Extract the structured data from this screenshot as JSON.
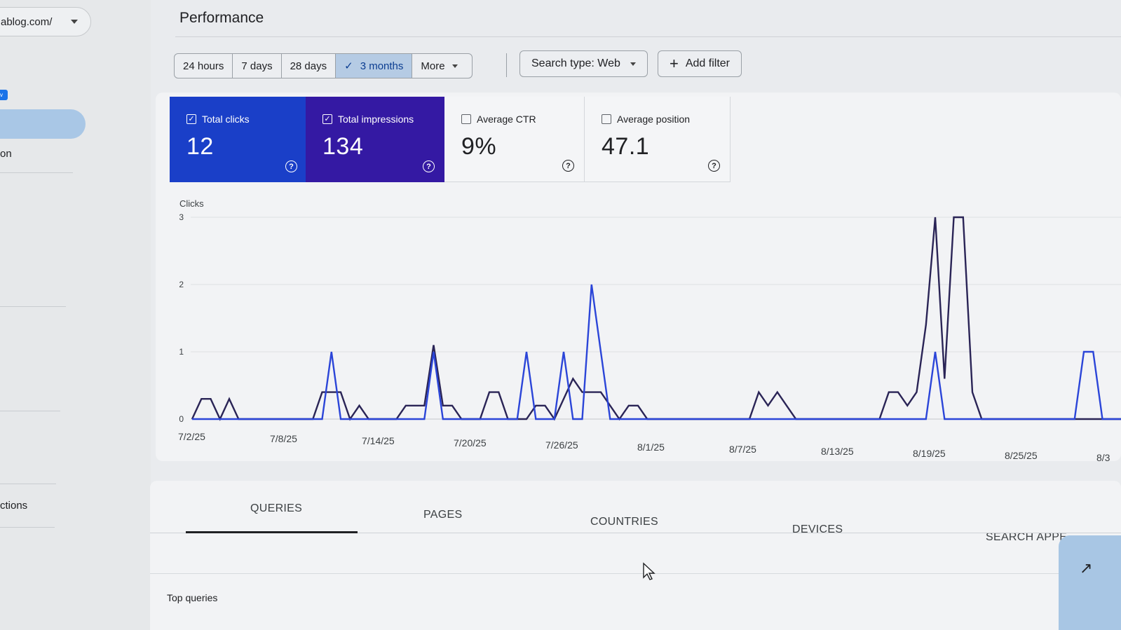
{
  "sidebar": {
    "property": "ablog.com/",
    "badge": "v",
    "items": [
      {
        "label": ""
      },
      {
        "label": "on"
      },
      {
        "label": "ctions"
      }
    ]
  },
  "header": {
    "title": "Performance"
  },
  "filters": {
    "ranges": [
      {
        "label": "24 hours",
        "selected": false
      },
      {
        "label": "7 days",
        "selected": false
      },
      {
        "label": "28 days",
        "selected": false
      },
      {
        "label": "3 months",
        "selected": true
      },
      {
        "label": "More",
        "selected": false
      }
    ],
    "search_type": "Search type: Web",
    "add_filter": "Add filter"
  },
  "metrics": [
    {
      "label": "Total clicks",
      "value": "12",
      "checked": true,
      "color": "#1a3fc8"
    },
    {
      "label": "Total impressions",
      "value": "134",
      "checked": true,
      "color": "#3419a3"
    },
    {
      "label": "Average CTR",
      "value": "9%",
      "checked": false
    },
    {
      "label": "Average position",
      "value": "47.1",
      "checked": false
    }
  ],
  "chart_data": {
    "type": "line",
    "ylabel": "Clicks",
    "ylim": [
      0,
      3
    ],
    "yticks": [
      "0",
      "1",
      "2",
      "3"
    ],
    "x_tick_labels": [
      "7/2/25",
      "7/8/25",
      "7/14/25",
      "7/20/25",
      "7/26/25",
      "8/1/25",
      "8/7/25",
      "8/13/25",
      "8/19/25",
      "8/25/25",
      "8/3"
    ],
    "series": [
      {
        "name": "Total clicks",
        "color": "#2b45d8",
        "values": [
          0,
          0,
          0,
          0,
          0,
          0,
          0,
          0,
          0,
          0,
          0,
          0,
          0,
          0,
          0,
          1,
          0,
          0,
          0,
          0,
          0,
          0,
          0,
          0,
          0,
          0,
          1,
          0,
          0,
          0,
          0,
          0,
          0,
          0,
          0,
          0,
          1,
          0,
          0,
          0,
          1,
          0,
          0,
          2,
          1,
          0,
          0,
          0,
          0,
          0,
          0,
          0,
          0,
          0,
          0,
          0,
          0,
          0,
          0,
          0,
          0,
          0,
          0,
          0,
          0,
          0,
          0,
          0,
          0,
          0,
          0,
          0,
          0,
          0,
          0,
          0,
          0,
          0,
          0,
          0,
          1,
          0,
          0,
          0,
          0,
          0,
          0,
          0,
          0,
          0,
          0,
          0,
          0,
          0,
          0,
          0,
          1,
          1,
          0,
          0,
          0
        ]
      },
      {
        "name": "Total impressions",
        "color": "#2a2456",
        "values": [
          0,
          0.3,
          0.3,
          0,
          0.3,
          0,
          0,
          0,
          0,
          0,
          0,
          0,
          0,
          0,
          0.4,
          0.4,
          0.4,
          0,
          0.2,
          0,
          0,
          0,
          0,
          0.2,
          0.2,
          0.2,
          1.1,
          0.2,
          0.2,
          0,
          0,
          0,
          0.4,
          0.4,
          0,
          0,
          0,
          0.2,
          0.2,
          0,
          0.3,
          0.6,
          0.4,
          0.4,
          0.4,
          0.2,
          0,
          0.2,
          0.2,
          0,
          0,
          0,
          0,
          0,
          0,
          0,
          0,
          0,
          0,
          0,
          0,
          0.4,
          0.2,
          0.4,
          0.2,
          0,
          0,
          0,
          0,
          0,
          0,
          0,
          0,
          0,
          0,
          0.4,
          0.4,
          0.2,
          0.4,
          1.4,
          3,
          0.6,
          3,
          3,
          0.4,
          0,
          0,
          0,
          0,
          0,
          0,
          0,
          0,
          0,
          0,
          0,
          0,
          0,
          0,
          0,
          0
        ]
      }
    ]
  },
  "tabs": {
    "items": [
      {
        "label": "QUERIES",
        "active": true
      },
      {
        "label": "PAGES",
        "active": false
      },
      {
        "label": "COUNTRIES",
        "active": false
      },
      {
        "label": "DEVICES",
        "active": false
      },
      {
        "label": "SEARCH APPE",
        "active": false
      }
    ],
    "subtitle": "Top queries"
  }
}
